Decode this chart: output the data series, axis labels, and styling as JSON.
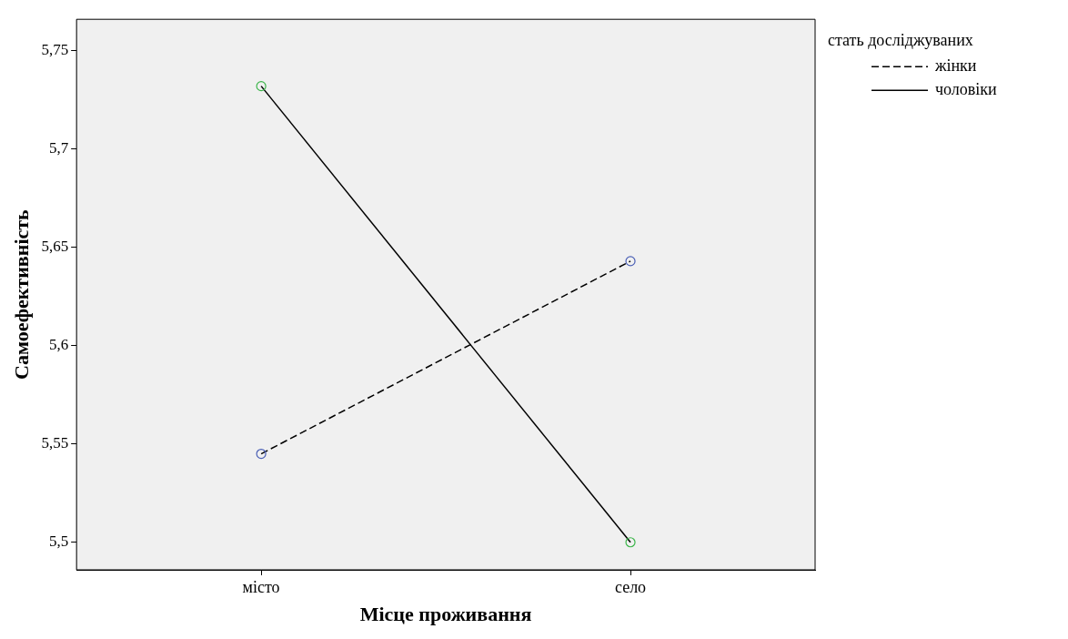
{
  "chart_data": {
    "type": "line",
    "xlabel": "Місце проживання",
    "ylabel": "Самоефективність",
    "legend_title": "стать досліджуваних",
    "categories": [
      "місто",
      "село"
    ],
    "series": [
      {
        "name": "жінки",
        "color": "#000000",
        "colors": [
          "#4a5fb5",
          "#4a5fb5"
        ],
        "line_style": "dashed",
        "values": [
          5.545,
          5.643
        ]
      },
      {
        "name": "чоловіки",
        "color": "#000000",
        "colors": [
          "#3cb54a",
          "#3cb54a"
        ],
        "line_style": "solid",
        "values": [
          5.732,
          5.5
        ]
      }
    ],
    "ylim": [
      5.486,
      5.766
    ],
    "yticks": [
      {
        "value": 5.5,
        "label": "5,5"
      },
      {
        "value": 5.55,
        "label": "5,55"
      },
      {
        "value": 5.6,
        "label": "5,6"
      },
      {
        "value": 5.65,
        "label": "5,65"
      },
      {
        "value": 5.7,
        "label": "5,7"
      },
      {
        "value": 5.75,
        "label": "5,75"
      }
    ],
    "marker": "circle",
    "grid": false,
    "legend": "top right"
  }
}
